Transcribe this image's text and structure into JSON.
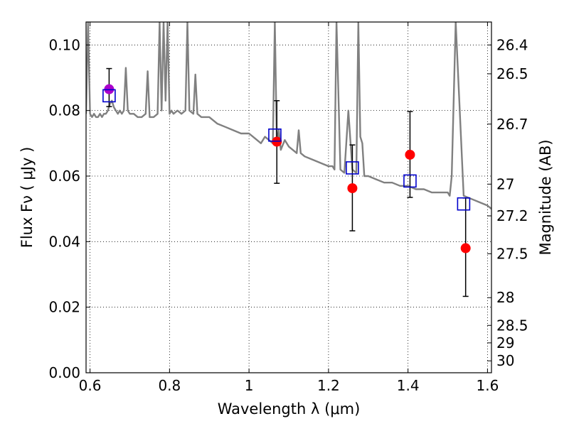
{
  "chart_data": {
    "type": "scatter",
    "xlabel": "Wavelength  λ (μm)",
    "ylabel": "Flux  Fν  ( μJy )",
    "y2label": "Magnitude (AB)",
    "xlim": [
      0.59,
      1.61
    ],
    "ylim": [
      0.0,
      0.107
    ],
    "x_ticks": [
      {
        "value": 0.6,
        "label": "0.6"
      },
      {
        "value": 0.8,
        "label": "0.8"
      },
      {
        "value": 1.0,
        "label": "1"
      },
      {
        "value": 1.2,
        "label": "1.2"
      },
      {
        "value": 1.4,
        "label": "1.4"
      },
      {
        "value": 1.6,
        "label": "1.6"
      }
    ],
    "y_ticks": [
      {
        "value": 0.0,
        "label": "0.00"
      },
      {
        "value": 0.02,
        "label": "0.02"
      },
      {
        "value": 0.04,
        "label": "0.04"
      },
      {
        "value": 0.06,
        "label": "0.06"
      },
      {
        "value": 0.08,
        "label": "0.08"
      },
      {
        "value": 0.1,
        "label": "0.10"
      }
    ],
    "y2_ticks": [
      {
        "value": 26.4,
        "label": "26.4"
      },
      {
        "value": 26.5,
        "label": "26.5"
      },
      {
        "value": 26.7,
        "label": "26.7"
      },
      {
        "value": 27.0,
        "label": "27"
      },
      {
        "value": 27.2,
        "label": "27.2"
      },
      {
        "value": 27.5,
        "label": "27.5"
      },
      {
        "value": 28.0,
        "label": "28"
      },
      {
        "value": 28.5,
        "label": "28.5"
      },
      {
        "value": 29.0,
        "label": "29"
      },
      {
        "value": 30.0,
        "label": "30"
      }
    ],
    "grid": true,
    "series": [
      {
        "kind": "line",
        "color": "#808080",
        "x": [
          0.59,
          0.595,
          0.6,
          0.605,
          0.61,
          0.615,
          0.62,
          0.625,
          0.63,
          0.635,
          0.64,
          0.645,
          0.65,
          0.655,
          0.66,
          0.665,
          0.67,
          0.675,
          0.68,
          0.685,
          0.69,
          0.695,
          0.7,
          0.71,
          0.72,
          0.73,
          0.74,
          0.745,
          0.75,
          0.76,
          0.77,
          0.775,
          0.78,
          0.785,
          0.79,
          0.795,
          0.8,
          0.805,
          0.81,
          0.82,
          0.83,
          0.84,
          0.845,
          0.85,
          0.86,
          0.865,
          0.87,
          0.88,
          0.9,
          0.92,
          0.94,
          0.96,
          0.98,
          1.0,
          1.01,
          1.02,
          1.03,
          1.04,
          1.05,
          1.06,
          1.065,
          1.07,
          1.075,
          1.08,
          1.09,
          1.1,
          1.11,
          1.12,
          1.125,
          1.13,
          1.14,
          1.16,
          1.18,
          1.2,
          1.21,
          1.215,
          1.22,
          1.23,
          1.24,
          1.25,
          1.26,
          1.27,
          1.275,
          1.28,
          1.285,
          1.29,
          1.3,
          1.32,
          1.34,
          1.36,
          1.38,
          1.4,
          1.42,
          1.44,
          1.46,
          1.48,
          1.5,
          1.505,
          1.51,
          1.52,
          1.54,
          1.56,
          1.58,
          1.6,
          1.61
        ],
        "y": [
          0.079,
          0.107,
          0.079,
          0.078,
          0.079,
          0.078,
          0.078,
          0.079,
          0.078,
          0.079,
          0.079,
          0.08,
          0.082,
          0.083,
          0.081,
          0.08,
          0.079,
          0.08,
          0.079,
          0.08,
          0.093,
          0.08,
          0.079,
          0.079,
          0.078,
          0.078,
          0.079,
          0.092,
          0.078,
          0.078,
          0.079,
          0.107,
          0.08,
          0.107,
          0.083,
          0.107,
          0.079,
          0.08,
          0.079,
          0.08,
          0.079,
          0.08,
          0.107,
          0.08,
          0.079,
          0.091,
          0.079,
          0.078,
          0.078,
          0.076,
          0.075,
          0.074,
          0.073,
          0.073,
          0.072,
          0.071,
          0.07,
          0.072,
          0.071,
          0.07,
          0.107,
          0.07,
          0.074,
          0.068,
          0.071,
          0.069,
          0.068,
          0.067,
          0.074,
          0.067,
          0.066,
          0.065,
          0.064,
          0.063,
          0.063,
          0.062,
          0.107,
          0.062,
          0.061,
          0.08,
          0.062,
          0.061,
          0.107,
          0.072,
          0.07,
          0.06,
          0.06,
          0.059,
          0.058,
          0.058,
          0.057,
          0.057,
          0.056,
          0.056,
          0.055,
          0.055,
          0.055,
          0.054,
          0.06,
          0.107,
          0.054,
          0.053,
          0.052,
          0.051,
          0.05
        ]
      },
      {
        "kind": "points",
        "marker": "circle",
        "color": "#ff0000",
        "x": [
          1.07,
          1.26,
          1.405,
          1.545
        ],
        "y": [
          0.0705,
          0.0563,
          0.0665,
          0.038
        ],
        "err_low": [
          0.0578,
          0.0433,
          0.0535,
          0.0233
        ],
        "err_high": [
          0.083,
          0.0695,
          0.0797,
          0.0533
        ]
      },
      {
        "kind": "points",
        "marker": "circle",
        "color": "#aa00cc",
        "x": [
          0.648
        ],
        "y": [
          0.0865
        ],
        "err_low": [
          0.0812
        ],
        "err_high": [
          0.0928
        ]
      },
      {
        "kind": "points",
        "marker": "square",
        "color": "#0000cc",
        "x": [
          0.648,
          1.065,
          1.26,
          1.405,
          1.54
        ],
        "y": [
          0.0845,
          0.0725,
          0.0625,
          0.0585,
          0.0515
        ]
      }
    ]
  }
}
